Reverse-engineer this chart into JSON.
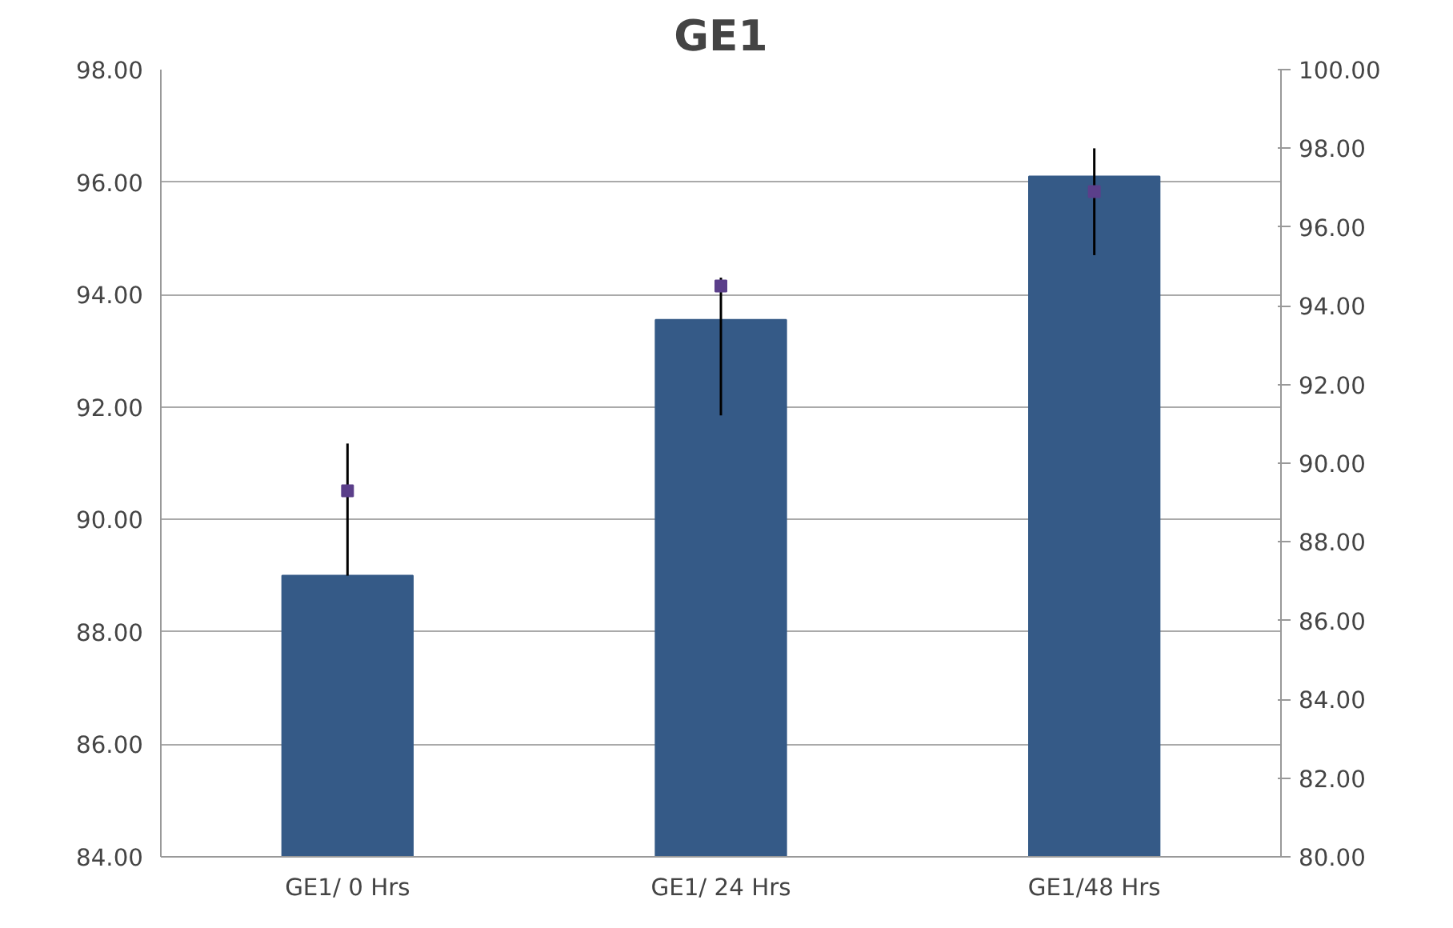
{
  "chart_data": {
    "type": "bar",
    "title": "GE1",
    "categories": [
      "GE1/ 0 Hrs",
      "GE1/ 24 Hrs",
      "GE1/48 Hrs"
    ],
    "series": [
      {
        "color": "#355a87",
        "values": [
          89.0,
          93.55,
          96.1
        ],
        "errors": [
          [
            89.0,
            91.35
          ],
          [
            91.85,
            94.3
          ],
          [
            94.7,
            96.6
          ]
        ]
      },
      {
        "type": "scatter",
        "axis": "y2",
        "color": "#5b3f8a",
        "marker": "square",
        "values": [
          89.3,
          94.5,
          96.9
        ]
      }
    ],
    "ylim": [
      84,
      98
    ],
    "yticks": [
      {
        "value": 84,
        "label": "84.00"
      },
      {
        "value": 86,
        "label": "86.00"
      },
      {
        "value": 88,
        "label": "88.00"
      },
      {
        "value": 90,
        "label": "90.00"
      },
      {
        "value": 92,
        "label": "92.00"
      },
      {
        "value": 94,
        "label": "94.00"
      },
      {
        "value": 96,
        "label": "96.00"
      },
      {
        "value": 98,
        "label": "98.00"
      }
    ],
    "y2lim": [
      80,
      100
    ],
    "y2ticks": [
      {
        "value": 80,
        "label": "80.00"
      },
      {
        "value": 82,
        "label": "82.00"
      },
      {
        "value": 84,
        "label": "84.00"
      },
      {
        "value": 86,
        "label": "86.00"
      },
      {
        "value": 88,
        "label": "88.00"
      },
      {
        "value": 90,
        "label": "90.00"
      },
      {
        "value": 92,
        "label": "92.00"
      },
      {
        "value": 94,
        "label": "94.00"
      },
      {
        "value": 96,
        "label": "96.00"
      },
      {
        "value": 98,
        "label": "98.00"
      },
      {
        "value": 100,
        "label": "100.00"
      }
    ],
    "grid": "y"
  }
}
